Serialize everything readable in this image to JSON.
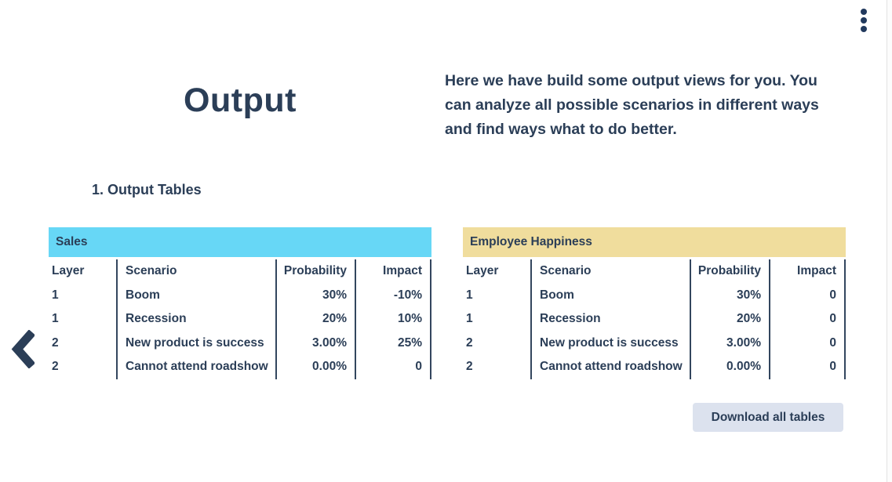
{
  "page": {
    "title": "Output",
    "intro": "Here we have build some output views for you. You can analyze all possible scenarios in different ways and find ways what to do better.",
    "section_heading": "1. Output Tables"
  },
  "icons": {
    "kebab_menu": "vertical-three-dots",
    "back": "chevron-left"
  },
  "colors": {
    "text_navy": "#2b3e57",
    "sales_header_bg": "#67d7f6",
    "happiness_header_bg": "#f0dd9d",
    "column_divider": "#33465e",
    "button_bg": "#dce2ee"
  },
  "tables": [
    {
      "title": "Sales",
      "header_bg": "#67d7f6",
      "columns": [
        "Layer",
        "Scenario",
        "Probability",
        "Impact"
      ],
      "rows": [
        [
          "1",
          "Boom",
          "30%",
          "-10%"
        ],
        [
          "1",
          "Recession",
          "20%",
          "10%"
        ],
        [
          "2",
          "New product is success",
          "3.00%",
          "25%"
        ],
        [
          "2",
          "Cannot attend roadshow",
          "0.00%",
          "0"
        ]
      ]
    },
    {
      "title": "Employee Happiness",
      "header_bg": "#f0dd9d",
      "columns": [
        "Layer",
        "Scenario",
        "Probability",
        "Impact"
      ],
      "rows": [
        [
          "1",
          "Boom",
          "30%",
          "0"
        ],
        [
          "1",
          "Recession",
          "20%",
          "0"
        ],
        [
          "2",
          "New product is success",
          "3.00%",
          "0"
        ],
        [
          "2",
          "Cannot attend roadshow",
          "0.00%",
          "0"
        ]
      ]
    }
  ],
  "actions": {
    "download_all": "Download all tables"
  }
}
